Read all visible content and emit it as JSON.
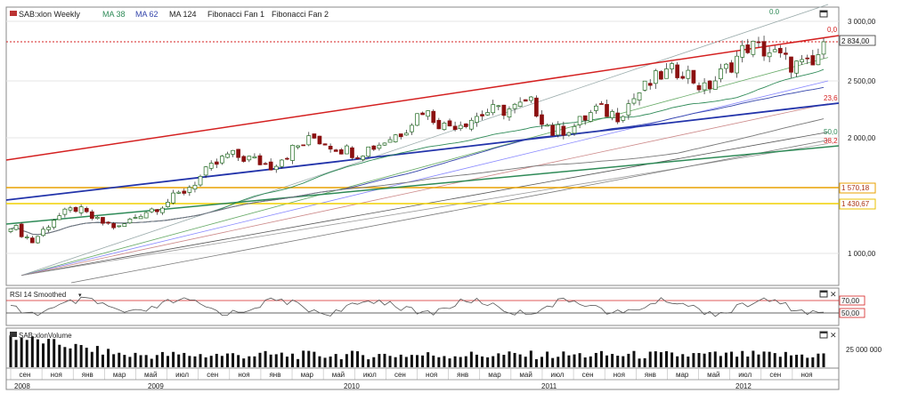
{
  "toolbar": {
    "symbol": "SAB:xlon Weekly",
    "ma38": "MA 38",
    "ma62": "MA 62",
    "ma124": "MA 124",
    "fan1": "Fibonacci Fan 1",
    "fan2": "Fibonacci Fan 2"
  },
  "chart_data": [
    {
      "type": "candlestick",
      "title": "SAB:xlon Weekly",
      "ylim": [
        800,
        3150
      ],
      "yticks": [
        "3 000,00",
        "2 500,00",
        "2 000,00",
        "1 000,00"
      ],
      "price_labels": [
        "2 834,00",
        "1 570,18",
        "1 430,67"
      ],
      "fib_labels": [
        "0.0",
        "0,0",
        "23,6",
        "50,0",
        "38,2"
      ],
      "overlays": [
        "MA 38",
        "MA 62",
        "MA 124",
        "Fibonacci Fan 1",
        "Fibonacci Fan 2"
      ],
      "key_prices": {
        "last": 2834,
        "level1": 1570.18,
        "level2": 1430.67
      },
      "approx_weekly_close": [
        [
          0,
          1250
        ],
        [
          4,
          1100
        ],
        [
          8,
          1300
        ],
        [
          12,
          1390
        ],
        [
          16,
          1280
        ],
        [
          20,
          1220
        ],
        [
          24,
          1350
        ],
        [
          28,
          1420
        ],
        [
          32,
          1540
        ],
        [
          36,
          1700
        ],
        [
          40,
          1850
        ],
        [
          44,
          1820
        ],
        [
          48,
          1760
        ],
        [
          52,
          1900
        ],
        [
          56,
          2000
        ],
        [
          60,
          1920
        ],
        [
          64,
          1870
        ],
        [
          68,
          1950
        ],
        [
          72,
          2050
        ],
        [
          76,
          2250
        ],
        [
          80,
          2100
        ],
        [
          84,
          2150
        ],
        [
          88,
          2230
        ],
        [
          92,
          2250
        ],
        [
          96,
          2300
        ],
        [
          100,
          2050
        ],
        [
          104,
          2100
        ],
        [
          108,
          2250
        ],
        [
          112,
          2200
        ],
        [
          116,
          2400
        ],
        [
          120,
          2550
        ],
        [
          124,
          2600
        ],
        [
          128,
          2420
        ],
        [
          132,
          2600
        ],
        [
          136,
          2800
        ],
        [
          140,
          2750
        ],
        [
          144,
          2640
        ],
        [
          148,
          2620
        ],
        [
          150,
          2834
        ]
      ]
    },
    {
      "type": "line",
      "title": "RSI 14 Smoothed",
      "levels": [
        "70,00",
        "50,00"
      ]
    },
    {
      "type": "bar",
      "title": "SAB:xlonVolume",
      "yticks": [
        "25 000 000"
      ]
    }
  ],
  "x_axis": {
    "months": [
      "сен",
      "ноя",
      "янв",
      "мар",
      "май",
      "июл",
      "сен",
      "ноя",
      "янв",
      "мар",
      "май",
      "июл",
      "сен",
      "ноя",
      "янв",
      "мар",
      "май",
      "июл",
      "сен",
      "ноя",
      "янв",
      "мар",
      "май",
      "июл",
      "сен",
      "ноя"
    ],
    "years": [
      "2008",
      "2009",
      "2010",
      "2011",
      "2012"
    ]
  },
  "colors": {
    "red": "#d42020",
    "blue": "#2233aa",
    "green": "#2e8a57",
    "orange": "#e8a000",
    "yellow": "#f0d000",
    "candle_up": "#1f6a1f",
    "candle_down": "#8b1010",
    "rsi": "#555555"
  }
}
